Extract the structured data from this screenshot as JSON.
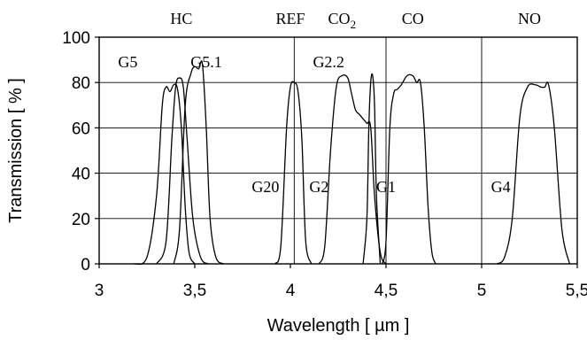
{
  "chart_data": {
    "type": "line",
    "xlabel": "Wavelength  [ µm ]",
    "ylabel": "Transmission  [ % ]",
    "xlim": [
      3,
      5.5
    ],
    "ylim": [
      0,
      100
    ],
    "x_ticks": [
      "3",
      "3,5",
      "4",
      "4,5",
      "5",
      "5,5"
    ],
    "y_ticks": [
      "0",
      "20",
      "40",
      "60",
      "80",
      "100"
    ],
    "grid": "vertical-and-horizontal",
    "band_labels": [
      {
        "text": "HC",
        "x": 3.43
      },
      {
        "text": "REF",
        "x": 4.0
      },
      {
        "text": "CO",
        "sub": "2",
        "x": 4.27
      },
      {
        "text": "CO",
        "x": 4.64
      },
      {
        "text": "NO",
        "x": 5.25
      }
    ],
    "band_lines": [
      4.02,
      4.5,
      5.0
    ],
    "series": [
      {
        "name": "G5",
        "label_x": 3.15,
        "label_y": 89,
        "x": [
          3.18,
          3.25,
          3.3,
          3.33,
          3.35,
          3.37,
          3.39,
          3.41,
          3.43,
          3.45,
          3.47,
          3.5
        ],
        "y": [
          0,
          3,
          30,
          70,
          78,
          76,
          79,
          77,
          60,
          25,
          5,
          0
        ]
      },
      {
        "name": "",
        "x": [
          3.3,
          3.35,
          3.38,
          3.4,
          3.42,
          3.44,
          3.46,
          3.49,
          3.53,
          3.57
        ],
        "y": [
          0,
          10,
          55,
          78,
          82,
          78,
          55,
          20,
          3,
          0
        ]
      },
      {
        "name": "G5.1",
        "label_x": 3.56,
        "label_y": 89,
        "x": [
          3.39,
          3.42,
          3.45,
          3.48,
          3.5,
          3.52,
          3.54,
          3.56,
          3.58,
          3.61,
          3.65
        ],
        "y": [
          0,
          15,
          70,
          84,
          87,
          86,
          88,
          60,
          20,
          3,
          0
        ]
      },
      {
        "name": "G20",
        "label_x": 3.87,
        "label_y": 34,
        "x": [
          3.92,
          3.95,
          3.98,
          4.0,
          4.02,
          4.04,
          4.06,
          4.08,
          4.11
        ],
        "y": [
          0,
          8,
          60,
          78,
          80,
          76,
          55,
          10,
          0
        ]
      },
      {
        "name": "G2",
        "label_x": 4.15,
        "label_y": 34,
        "x": [
          4.15,
          4.18,
          4.21,
          4.24,
          4.27,
          4.3,
          4.32,
          4.34,
          4.36,
          4.38,
          4.4,
          4.42,
          4.44,
          4.47,
          4.5
        ],
        "y": [
          0,
          8,
          50,
          78,
          83,
          82,
          75,
          68,
          66,
          64,
          62,
          60,
          30,
          5,
          0
        ]
      },
      {
        "name": "G2.2",
        "label_x": 4.2,
        "label_y": 89,
        "x": [
          4.38,
          4.4,
          4.41,
          4.42,
          4.43,
          4.44,
          4.45,
          4.47
        ],
        "y": [
          0,
          20,
          60,
          80,
          83,
          70,
          30,
          0
        ]
      },
      {
        "name": "G1",
        "label_x": 4.5,
        "label_y": 34,
        "x": [
          4.48,
          4.5,
          4.52,
          4.54,
          4.56,
          4.58,
          4.61,
          4.64,
          4.66,
          4.68,
          4.7,
          4.72,
          4.74,
          4.76
        ],
        "y": [
          0,
          10,
          60,
          75,
          77,
          79,
          83,
          83,
          80,
          80,
          60,
          25,
          5,
          0
        ]
      },
      {
        "name": "G4",
        "label_x": 5.1,
        "label_y": 34,
        "x": [
          5.08,
          5.12,
          5.16,
          5.2,
          5.24,
          5.28,
          5.31,
          5.33,
          5.35,
          5.38,
          5.42,
          5.46
        ],
        "y": [
          0,
          3,
          20,
          65,
          78,
          79,
          78,
          78,
          79,
          60,
          15,
          0
        ]
      }
    ]
  }
}
